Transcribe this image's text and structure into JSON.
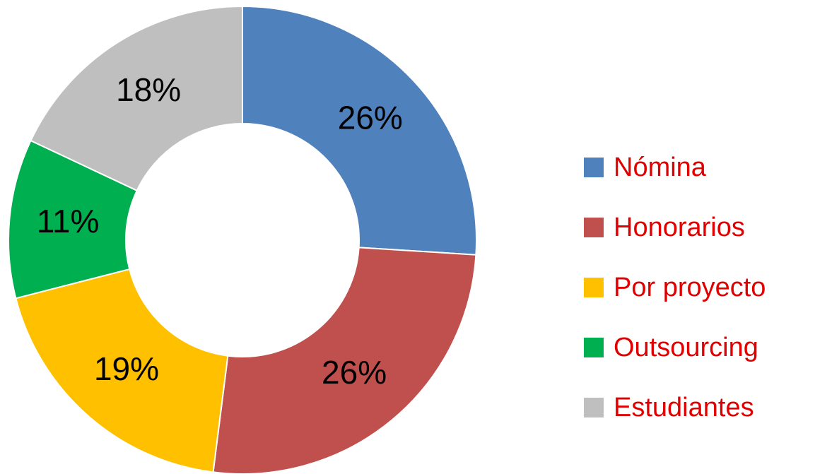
{
  "chart_data": {
    "type": "donut",
    "categories": [
      "Nómina",
      "Honorarios",
      "Por proyecto",
      "Outsourcing",
      "Estudiantes"
    ],
    "values": [
      26,
      26,
      19,
      11,
      18
    ],
    "value_labels": [
      "26%",
      "26%",
      "19%",
      "11%",
      "18%"
    ],
    "colors": [
      "#4f81bd",
      "#c0504d",
      "#ffc000",
      "#00b050",
      "#bfbfbf"
    ],
    "legend": "right"
  }
}
